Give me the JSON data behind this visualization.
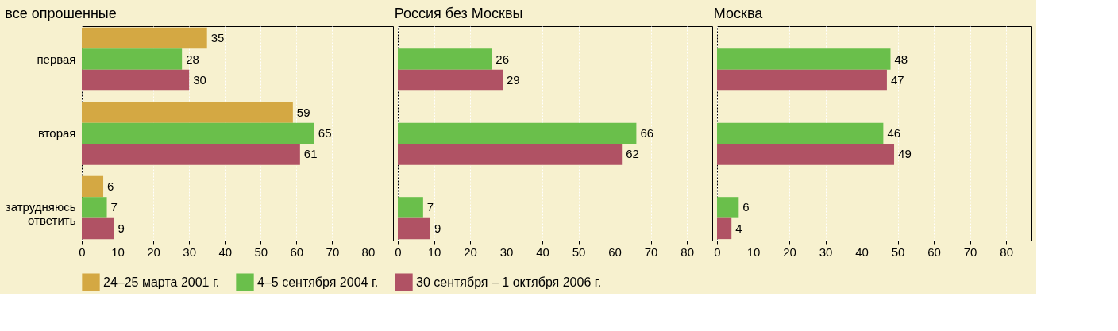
{
  "chart_data": [
    {
      "type": "bar",
      "orientation": "horizontal",
      "title": "все опрошенные",
      "categories": [
        "первая",
        "вторая",
        "затрудняюсь ответить"
      ],
      "series": [
        {
          "name": "24–25 марта 2001 г.",
          "color": "#d4a843",
          "values": [
            35,
            59,
            6
          ]
        },
        {
          "name": "4–5 сентября 2004 г.",
          "color": "#6abf4b",
          "values": [
            28,
            65,
            7
          ]
        },
        {
          "name": "30 сентября – 1 октября 2006 г.",
          "color": "#b05264",
          "values": [
            30,
            61,
            9
          ]
        }
      ],
      "xlim": [
        0,
        87
      ],
      "xticks": [
        0,
        10,
        20,
        30,
        40,
        50,
        60,
        70,
        80
      ],
      "grid": "x",
      "data_labels": true,
      "legend": "bottom"
    },
    {
      "type": "bar",
      "orientation": "horizontal",
      "title": "Россия без Москвы",
      "categories": [
        null,
        null,
        null
      ],
      "series": [
        {
          "name": "24–25 марта 2001 г.",
          "color": "#d4a843",
          "values": [
            null,
            null,
            null
          ]
        },
        {
          "name": "4–5 сентября 2004 г.",
          "color": "#6abf4b",
          "values": [
            26,
            66,
            7
          ]
        },
        {
          "name": "30 сентября – 1 октября 2006 г.",
          "color": "#b05264",
          "values": [
            29,
            62,
            9
          ]
        }
      ],
      "xlim": [
        0,
        87
      ],
      "xticks": [
        0,
        10,
        20,
        30,
        40,
        50,
        60,
        70,
        80
      ],
      "grid": "x",
      "data_labels": true,
      "tick_labels": "x"
    },
    {
      "type": "bar",
      "orientation": "horizontal",
      "title": "Москва",
      "categories": [
        null,
        null,
        null
      ],
      "series": [
        {
          "name": "24–25 марта 2001 г.",
          "color": "#d4a843",
          "values": [
            null,
            null,
            null
          ]
        },
        {
          "name": "4–5 сентября 2004 г.",
          "color": "#6abf4b",
          "values": [
            48,
            46,
            6
          ]
        },
        {
          "name": "30 сентября – 1 октября 2006 г.",
          "color": "#b05264",
          "values": [
            47,
            49,
            4
          ]
        }
      ],
      "xlim": [
        0,
        87
      ],
      "xticks": [
        0,
        10,
        20,
        30,
        40,
        50,
        60,
        70,
        80
      ],
      "grid": "x",
      "data_labels": true,
      "tick_labels": "x"
    }
  ]
}
